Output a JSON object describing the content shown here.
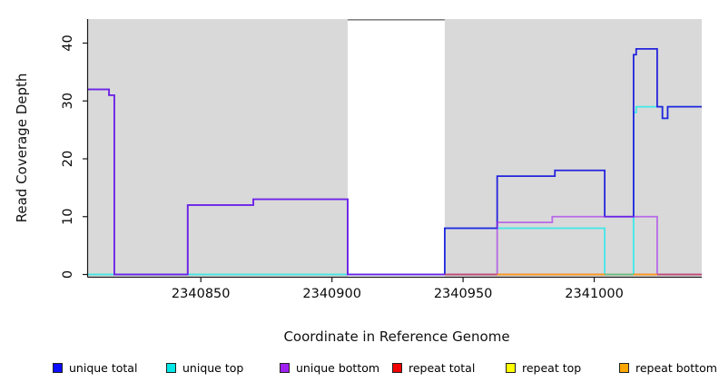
{
  "figure": {
    "x_axis_title": "Coordinate in Reference Genome",
    "y_axis_title": "Read Coverage Depth"
  },
  "chart_data": {
    "type": "line",
    "subtype": "step-after coverage plot",
    "title": "",
    "xlabel": "Coordinate in Reference Genome",
    "ylabel": "Read Coverage Depth",
    "xlim": [
      2340807,
      2341041
    ],
    "ylim": [
      0,
      44.2
    ],
    "grid": "off",
    "x_ticks": [
      {
        "value": 2340850,
        "label": "2340850"
      },
      {
        "value": 2340900,
        "label": "2340900"
      },
      {
        "value": 2340950,
        "label": "2340950"
      },
      {
        "value": 2341000,
        "label": "2341000"
      }
    ],
    "y_ticks": [
      {
        "value": 0,
        "label": "0"
      },
      {
        "value": 10,
        "label": "10"
      },
      {
        "value": 20,
        "label": "20"
      },
      {
        "value": 30,
        "label": "30"
      },
      {
        "value": 40,
        "label": "40"
      }
    ],
    "background": {
      "shaded_color": "#d9d9d9",
      "shaded_regions": [
        [
          2340807,
          2340906
        ],
        [
          2340943,
          2341041
        ]
      ],
      "gap_region": [
        2340906,
        2340943
      ],
      "gap_top_border_color": "#858585"
    },
    "series": [
      {
        "name": "unique total",
        "legend_color": "#0d0dff",
        "line_color": "#2424dd",
        "opacity": 1,
        "draw": true,
        "z": 2,
        "steps": [
          [
            2340807,
            32
          ],
          [
            2340815,
            31
          ],
          [
            2340817,
            0
          ],
          [
            2340845,
            12
          ],
          [
            2340870,
            13
          ],
          [
            2340906,
            0
          ],
          [
            2340943,
            8
          ],
          [
            2340963,
            17
          ],
          [
            2340985,
            18
          ],
          [
            2341004,
            10
          ],
          [
            2341015,
            38
          ],
          [
            2341016,
            39
          ],
          [
            2341024,
            29
          ],
          [
            2341026,
            27
          ],
          [
            2341028,
            29
          ],
          [
            2341041,
            29
          ]
        ]
      },
      {
        "name": "unique top",
        "legend_color": "#00e6e6",
        "line_color": "#3fe8e8",
        "opacity": 1,
        "draw": true,
        "z": 1,
        "steps": [
          [
            2340807,
            0
          ],
          [
            2340943,
            8
          ],
          [
            2341004,
            0
          ],
          [
            2341015,
            28
          ],
          [
            2341016,
            29
          ],
          [
            2341026,
            27
          ],
          [
            2341028,
            29
          ],
          [
            2341041,
            29
          ]
        ]
      },
      {
        "name": "unique bottom",
        "legend_color": "#a020f0",
        "line_color": "#a020f0",
        "opacity": 0.6,
        "draw": true,
        "z": 3,
        "steps": [
          [
            2340807,
            32
          ],
          [
            2340815,
            31
          ],
          [
            2340817,
            0
          ],
          [
            2340845,
            12
          ],
          [
            2340870,
            13
          ],
          [
            2340906,
            0
          ],
          [
            2340963,
            9
          ],
          [
            2340984,
            10
          ],
          [
            2341024,
            0
          ],
          [
            2341041,
            0
          ]
        ]
      },
      {
        "name": "repeat total",
        "legend_color": "#f00000",
        "line_color": "#c04a6e",
        "opacity": 1,
        "draw": false,
        "z": 0,
        "steps": [
          [
            2340943,
            0
          ],
          [
            2341041,
            0
          ]
        ]
      },
      {
        "name": "repeat top",
        "legend_color": "#ffff00",
        "line_color": "#8fcb8f",
        "opacity": 1,
        "draw": false,
        "z": 0,
        "steps": [
          [
            2340807,
            0
          ],
          [
            2340906,
            0
          ]
        ]
      },
      {
        "name": "repeat bottom",
        "legend_color": "#ffa500",
        "line_color": "#ff9c17",
        "opacity": 1,
        "draw": false,
        "z": 0,
        "steps": [
          [
            2340963,
            0
          ],
          [
            2341024,
            0
          ]
        ]
      }
    ],
    "baseline_under_segments": [
      {
        "color": "#8fcb8f",
        "from": 2340807,
        "to": 2340906
      }
    ],
    "baseline_over_segments": [
      {
        "color": "#c04a6e",
        "from": 2340943,
        "to": 2341041
      },
      {
        "color": "#ff9c17",
        "from": 2340963,
        "to": 2341024
      },
      {
        "color": "#5ec489",
        "from": 2341004,
        "to": 2341015
      }
    ],
    "legend_position": "bottom",
    "legend": [
      {
        "label": "unique total",
        "color": "#0d0dff"
      },
      {
        "label": "unique top",
        "color": "#00e6e6"
      },
      {
        "label": "unique bottom",
        "color": "#a020f0"
      },
      {
        "label": "repeat total",
        "color": "#f00000"
      },
      {
        "label": "repeat top",
        "color": "#ffff00"
      },
      {
        "label": "repeat bottom",
        "color": "#ffa500"
      }
    ]
  }
}
